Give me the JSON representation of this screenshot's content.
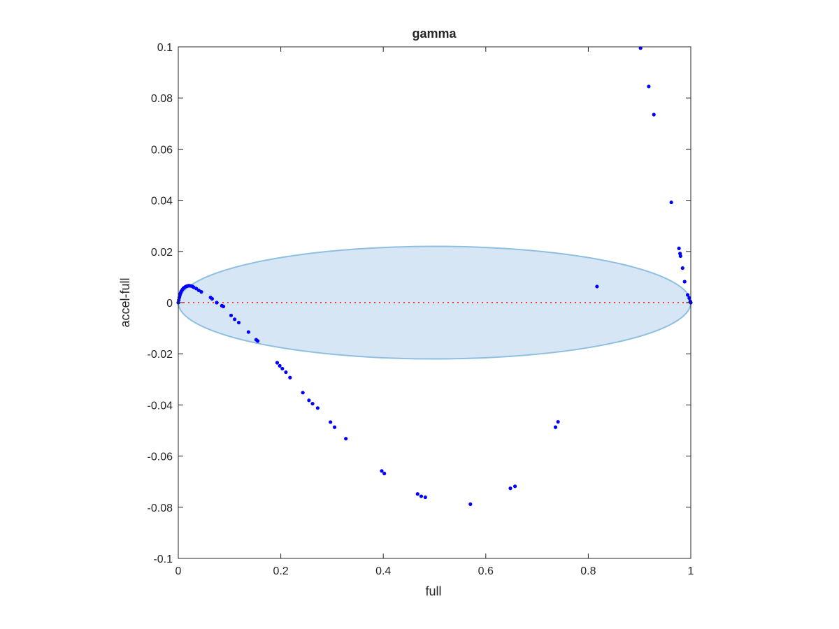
{
  "chart_data": {
    "type": "scatter",
    "title": "gamma",
    "xlabel": "full",
    "ylabel": "accel-full",
    "xlim": [
      0,
      1
    ],
    "ylim": [
      -0.1,
      0.1
    ],
    "xticks": [
      0,
      0.2,
      0.4,
      0.6,
      0.8,
      1
    ],
    "xtick_labels": [
      "0",
      "0.2",
      "0.4",
      "0.6",
      "0.8",
      "1"
    ],
    "yticks": [
      -0.1,
      -0.08,
      -0.06,
      -0.04,
      -0.02,
      0,
      0.02,
      0.04,
      0.06,
      0.08,
      0.1
    ],
    "ytick_labels": [
      "-0.1",
      "-0.08",
      "-0.06",
      "-0.04",
      "-0.02",
      "0",
      "0.02",
      "0.04",
      "0.06",
      "0.08",
      "0.1"
    ],
    "grid": false,
    "box": true,
    "colors": {
      "points": "#0000ff",
      "ellipse_fill": "#d6e6f4",
      "ellipse_edge": "#8fbfe0",
      "zero_line": "#ff0000",
      "axes": "#262626"
    },
    "shapes": [
      {
        "kind": "ellipse",
        "center": [
          0.5,
          0
        ],
        "x_radius": 0.5,
        "y_radius": 0.022
      },
      {
        "kind": "dotted-line",
        "y": 0,
        "x_range": [
          0,
          1
        ]
      }
    ],
    "series": [
      {
        "points": [
          [
            0.0,
            0.0
          ],
          [
            0.001,
            0.001
          ],
          [
            0.002,
            0.002
          ],
          [
            0.003,
            0.0028
          ],
          [
            0.004,
            0.0035
          ],
          [
            0.005,
            0.004
          ],
          [
            0.006,
            0.0045
          ],
          [
            0.008,
            0.0051
          ],
          [
            0.01,
            0.0056
          ],
          [
            0.012,
            0.0059
          ],
          [
            0.014,
            0.0062
          ],
          [
            0.016,
            0.0064
          ],
          [
            0.018,
            0.0065
          ],
          [
            0.02,
            0.0066
          ],
          [
            0.022,
            0.0066
          ],
          [
            0.025,
            0.0065
          ],
          [
            0.028,
            0.0063
          ],
          [
            0.03,
            0.006
          ],
          [
            0.035,
            0.0055
          ],
          [
            0.04,
            0.0048
          ],
          [
            0.045,
            0.0042
          ],
          [
            0.063,
            0.002
          ],
          [
            0.066,
            0.0015
          ],
          [
            0.075,
            0.0
          ],
          [
            0.085,
            -0.0012
          ],
          [
            0.088,
            -0.0015
          ],
          [
            0.103,
            -0.005
          ],
          [
            0.11,
            -0.0065
          ],
          [
            0.118,
            -0.0078
          ],
          [
            0.137,
            -0.0115
          ],
          [
            0.152,
            -0.0145
          ],
          [
            0.155,
            -0.015
          ],
          [
            0.193,
            -0.0235
          ],
          [
            0.198,
            -0.0247
          ],
          [
            0.203,
            -0.0258
          ],
          [
            0.21,
            -0.0272
          ],
          [
            0.218,
            -0.0293
          ],
          [
            0.243,
            -0.0352
          ],
          [
            0.255,
            -0.0382
          ],
          [
            0.262,
            -0.0395
          ],
          [
            0.272,
            -0.0412
          ],
          [
            0.297,
            -0.0467
          ],
          [
            0.305,
            -0.0487
          ],
          [
            0.327,
            -0.0532
          ],
          [
            0.397,
            -0.0658
          ],
          [
            0.402,
            -0.0668
          ],
          [
            0.467,
            -0.0748
          ],
          [
            0.474,
            -0.0757
          ],
          [
            0.482,
            -0.0761
          ],
          [
            0.57,
            -0.0788
          ],
          [
            0.648,
            -0.0726
          ],
          [
            0.657,
            -0.0718
          ],
          [
            0.736,
            -0.0487
          ],
          [
            0.741,
            -0.0466
          ],
          [
            0.817,
            0.0063
          ],
          [
            0.902,
            0.0995
          ],
          [
            0.918,
            0.0845
          ],
          [
            0.928,
            0.0735
          ],
          [
            0.962,
            0.0392
          ],
          [
            0.977,
            0.0212
          ],
          [
            0.979,
            0.0192
          ],
          [
            0.98,
            0.0182
          ],
          [
            0.984,
            0.0135
          ],
          [
            0.988,
            0.0082
          ],
          [
            0.994,
            0.003
          ],
          [
            0.997,
            0.0018
          ],
          [
            0.999,
            0.0005
          ],
          [
            1.0,
            0.0
          ]
        ]
      }
    ]
  }
}
